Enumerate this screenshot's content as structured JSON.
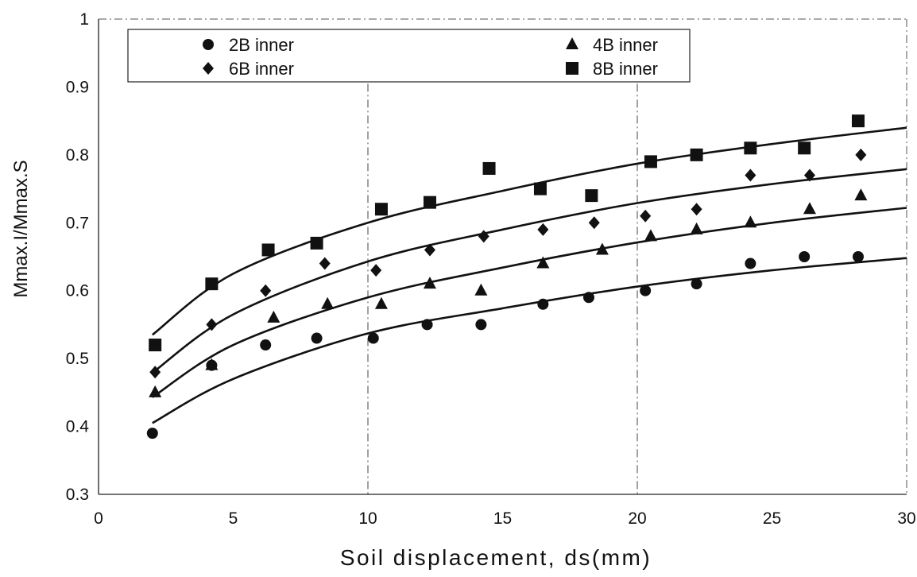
{
  "chart_data": {
    "type": "scatter",
    "xlabel": "Soil displacement, ds(mm)",
    "ylabel": "Mmax.I/Mmax.S",
    "xlim": [
      0,
      30
    ],
    "ylim": [
      0.3,
      1
    ],
    "x_ticks": [
      "0",
      "5",
      "10",
      "15",
      "20",
      "25",
      "30"
    ],
    "y_ticks": [
      "0.3",
      "0.4",
      "0.5",
      "0.6",
      "0.7",
      "0.8",
      "0.9",
      "1"
    ],
    "grid": "dash-dot lines at x=10 and x=20",
    "legend_position": "top",
    "series": [
      {
        "name": "2B inner",
        "marker": "circle",
        "points": [
          [
            2,
            0.39
          ],
          [
            4.2,
            0.49
          ],
          [
            6.2,
            0.52
          ],
          [
            8.1,
            0.53
          ],
          [
            10.2,
            0.53
          ],
          [
            12.2,
            0.55
          ],
          [
            14.2,
            0.55
          ],
          [
            16.5,
            0.58
          ],
          [
            18.2,
            0.59
          ],
          [
            20.3,
            0.6
          ],
          [
            22.2,
            0.61
          ],
          [
            24.2,
            0.64
          ],
          [
            26.2,
            0.65
          ],
          [
            28.2,
            0.65
          ]
        ],
        "fit": [
          [
            2,
            0.405
          ],
          [
            5,
            0.47
          ],
          [
            10,
            0.537
          ],
          [
            15,
            0.574
          ],
          [
            20,
            0.606
          ],
          [
            25,
            0.63
          ],
          [
            30,
            0.648
          ]
        ]
      },
      {
        "name": "4B inner",
        "marker": "triangle",
        "points": [
          [
            2.1,
            0.45
          ],
          [
            4.2,
            0.49
          ],
          [
            6.5,
            0.56
          ],
          [
            8.5,
            0.58
          ],
          [
            10.5,
            0.58
          ],
          [
            12.3,
            0.61
          ],
          [
            14.2,
            0.6
          ],
          [
            16.5,
            0.64
          ],
          [
            18.7,
            0.66
          ],
          [
            20.5,
            0.68
          ],
          [
            22.2,
            0.69
          ],
          [
            24.2,
            0.7
          ],
          [
            26.4,
            0.72
          ],
          [
            28.3,
            0.74
          ]
        ],
        "fit": [
          [
            2,
            0.443
          ],
          [
            5,
            0.52
          ],
          [
            10,
            0.59
          ],
          [
            15,
            0.634
          ],
          [
            20,
            0.671
          ],
          [
            25,
            0.7
          ],
          [
            30,
            0.722
          ]
        ]
      },
      {
        "name": "6B inner",
        "marker": "diamond",
        "points": [
          [
            2.1,
            0.48
          ],
          [
            4.2,
            0.55
          ],
          [
            6.2,
            0.6
          ],
          [
            8.4,
            0.64
          ],
          [
            10.3,
            0.63
          ],
          [
            12.3,
            0.66
          ],
          [
            14.3,
            0.68
          ],
          [
            16.5,
            0.69
          ],
          [
            18.4,
            0.7
          ],
          [
            20.3,
            0.71
          ],
          [
            22.2,
            0.72
          ],
          [
            24.2,
            0.77
          ],
          [
            26.4,
            0.77
          ],
          [
            28.3,
            0.8
          ]
        ],
        "fit": [
          [
            2,
            0.479
          ],
          [
            5,
            0.565
          ],
          [
            10,
            0.643
          ],
          [
            15,
            0.69
          ],
          [
            20,
            0.729
          ],
          [
            25,
            0.757
          ],
          [
            30,
            0.779
          ]
        ]
      },
      {
        "name": "8B inner",
        "marker": "square",
        "points": [
          [
            2.1,
            0.52
          ],
          [
            4.2,
            0.61
          ],
          [
            6.3,
            0.66
          ],
          [
            8.1,
            0.67
          ],
          [
            10.5,
            0.72
          ],
          [
            12.3,
            0.73
          ],
          [
            14.5,
            0.78
          ],
          [
            16.4,
            0.75
          ],
          [
            18.3,
            0.74
          ],
          [
            20.5,
            0.79
          ],
          [
            22.2,
            0.8
          ],
          [
            24.2,
            0.81
          ],
          [
            26.2,
            0.81
          ],
          [
            28.2,
            0.85
          ]
        ],
        "fit": [
          [
            2,
            0.535
          ],
          [
            5,
            0.625
          ],
          [
            10,
            0.7
          ],
          [
            15,
            0.747
          ],
          [
            20,
            0.787
          ],
          [
            25,
            0.816
          ],
          [
            30,
            0.84
          ]
        ]
      }
    ]
  }
}
